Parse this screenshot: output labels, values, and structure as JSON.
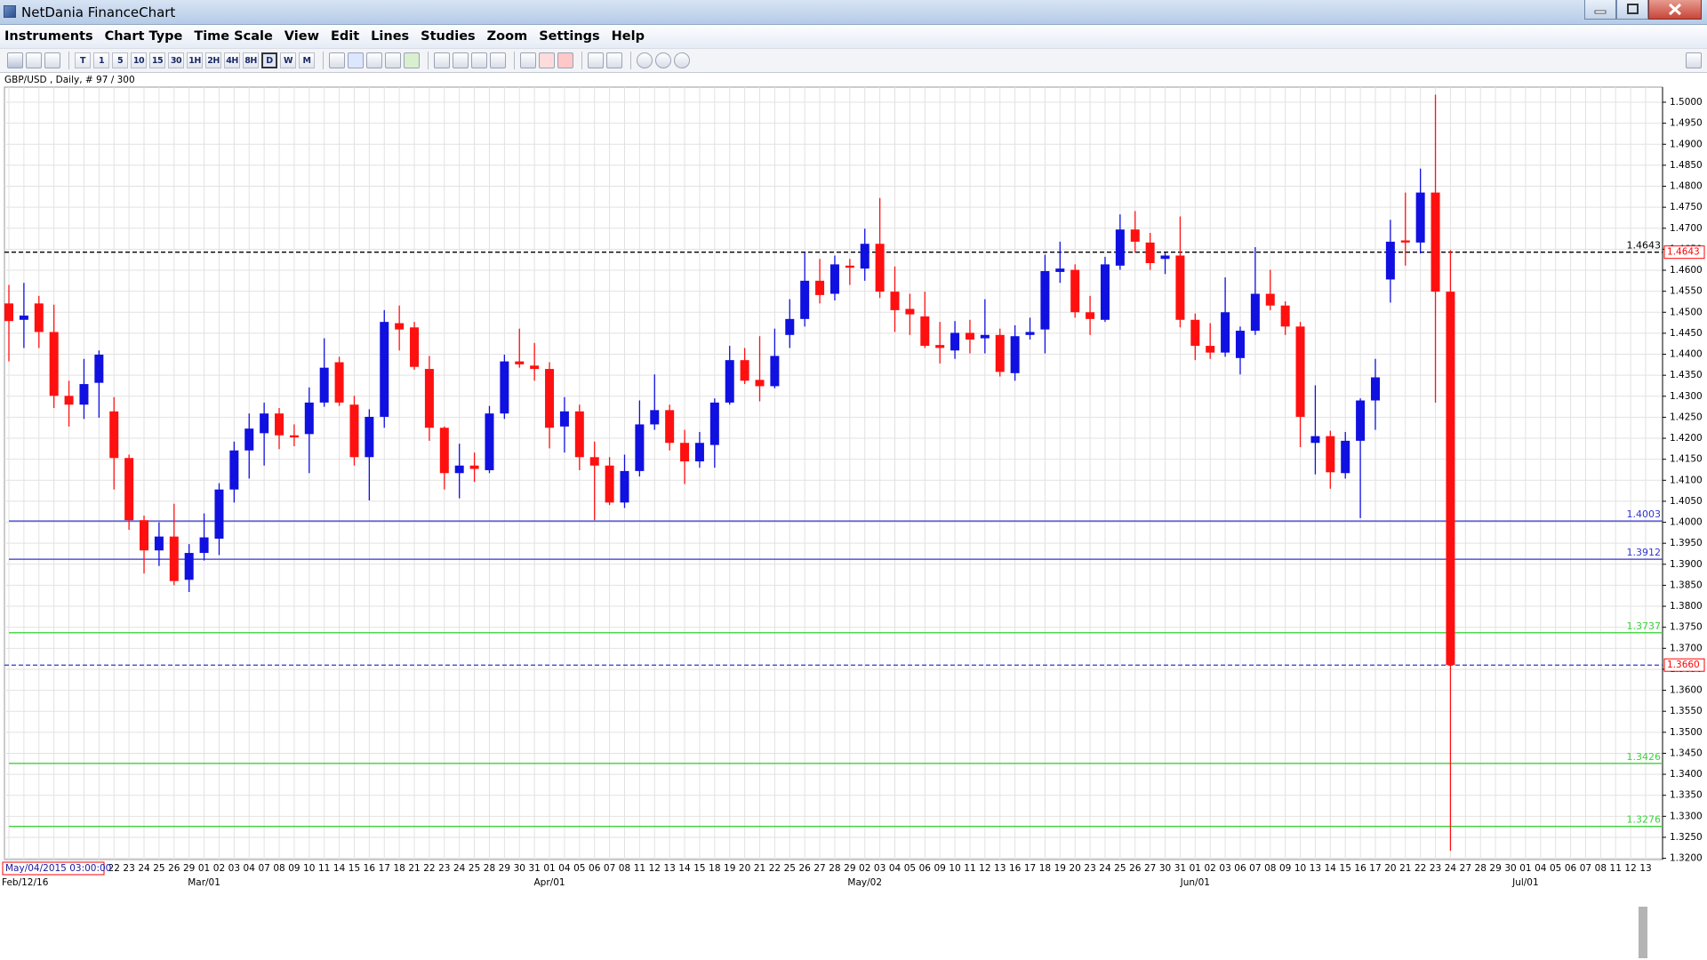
{
  "window": {
    "title": "NetDania FinanceChart",
    "menu": [
      "Instruments",
      "Chart Type",
      "Time Scale",
      "View",
      "Edit",
      "Lines",
      "Studies",
      "Zoom",
      "Settings",
      "Help"
    ]
  },
  "toolbar": {
    "timeframes": [
      "T",
      "1",
      "5",
      "10",
      "15",
      "30",
      "1H",
      "2H",
      "4H",
      "8H",
      "D",
      "W",
      "M"
    ],
    "selected": "D"
  },
  "chart_data": {
    "type": "candlestick",
    "title": "GBP/USD , Daily, # 97 / 300",
    "crosshair_time": "May/04/2015 03:00:00",
    "up_color": "#1010e0",
    "down_color": "#ff1010",
    "tag_color": "#ff0000",
    "grid": true,
    "categories": [
      null,
      null,
      null,
      null,
      null,
      null,
      null,
      "22",
      "23",
      "24",
      "25",
      "26",
      "29",
      "01",
      "02",
      "03",
      "04",
      "07",
      "08",
      "09",
      "10",
      "11",
      "14",
      "15",
      "16",
      "17",
      "18",
      "21",
      "22",
      "23",
      "24",
      "25",
      "28",
      "29",
      "30",
      "31",
      "01",
      "04",
      "05",
      "06",
      "07",
      "08",
      "11",
      "12",
      "13",
      "14",
      "15",
      "18",
      "19",
      "20",
      "21",
      "22",
      "25",
      "26",
      "27",
      "28",
      "29",
      "02",
      "03",
      "04",
      "05",
      "06",
      "09",
      "10",
      "11",
      "12",
      "13",
      "16",
      "17",
      "18",
      "19",
      "20",
      "23",
      "24",
      "25",
      "26",
      "27",
      "30",
      "31",
      "01",
      "02",
      "03",
      "06",
      "07",
      "08",
      "09",
      "10",
      "13",
      "14",
      "15",
      "16",
      "17",
      "20",
      "21",
      "22",
      "23",
      "24",
      "27",
      "28",
      "29",
      "30",
      "01",
      "04",
      "05",
      "06",
      "07",
      "08",
      "11",
      "12",
      "13"
    ],
    "periods": [
      "Feb/12/16",
      null,
      null,
      null,
      null,
      null,
      null,
      null,
      null,
      null,
      null,
      null,
      null,
      "Mar/01",
      null,
      null,
      null,
      null,
      null,
      null,
      null,
      null,
      null,
      null,
      null,
      null,
      null,
      null,
      null,
      null,
      null,
      null,
      null,
      null,
      null,
      null,
      "Apr/01",
      null,
      null,
      null,
      null,
      null,
      null,
      null,
      null,
      null,
      null,
      null,
      null,
      null,
      null,
      null,
      null,
      null,
      null,
      null,
      null,
      "May/02",
      null,
      null,
      null,
      null,
      null,
      null,
      null,
      null,
      null,
      null,
      null,
      null,
      null,
      null,
      null,
      null,
      null,
      null,
      null,
      null,
      null,
      "Jun/01",
      null,
      null,
      null,
      null,
      null,
      null,
      null,
      null,
      null,
      null,
      null,
      null,
      null,
      null,
      null,
      null,
      null,
      null,
      null,
      null,
      null,
      "Jul/01",
      null,
      null,
      null,
      null,
      null,
      null,
      null,
      null
    ],
    "open": [
      1.4521,
      1.4482,
      1.4521,
      1.4453,
      1.4301,
      1.428,
      1.4332,
      1.4264,
      1.4153,
      1.4005,
      1.3933,
      1.3966,
      1.3863,
      1.3927,
      1.3961,
      1.4078,
      1.4171,
      1.4212,
      1.4259,
      1.4207,
      1.421,
      1.4285,
      1.4381,
      1.428,
      1.4155,
      1.4251,
      1.4474,
      1.4464,
      1.4365,
      1.4225,
      1.4117,
      1.4135,
      1.4124,
      1.4259,
      1.4383,
      1.4373,
      1.4365,
      1.4228,
      1.4264,
      1.4155,
      1.4135,
      1.4047,
      1.4122,
      1.4233,
      1.4267,
      1.4189,
      1.4145,
      1.4184,
      1.4285,
      1.4386,
      1.4339,
      1.4324,
      1.4446,
      1.4484,
      1.4575,
      1.4544,
      1.4611,
      1.4604,
      1.4663,
      1.4549,
      1.4508,
      1.449,
      1.4422,
      1.4409,
      1.4451,
      1.4438,
      1.4446,
      1.4355,
      1.4446,
      1.4459,
      1.4596,
      1.4601,
      1.45,
      1.4482,
      1.4611,
      1.4697,
      1.4666,
      1.4627,
      1.4635,
      1.4482,
      1.442,
      1.4404,
      1.4391,
      1.4456,
      1.4544,
      1.4516,
      1.4466,
      1.4189,
      1.4205,
      1.4117,
      1.4194,
      1.429,
      1.4578,
      1.4671,
      1.4666,
      1.4785,
      1.4549,
      null,
      null,
      null,
      null,
      null,
      null,
      null,
      null,
      null,
      null,
      null,
      null,
      null
    ],
    "high": [
      1.4565,
      1.457,
      1.4539,
      1.4518,
      1.4337,
      1.4389,
      1.4409,
      1.4298,
      1.4161,
      1.4016,
      1.4,
      1.4044,
      1.3948,
      1.4021,
      1.4093,
      1.4192,
      1.4259,
      1.4285,
      1.4272,
      1.4233,
      1.4321,
      1.4438,
      1.4394,
      1.4301,
      1.4269,
      1.4505,
      1.4516,
      1.4477,
      1.4396,
      1.4228,
      1.4187,
      1.4166,
      1.4277,
      1.4399,
      1.4461,
      1.4427,
      1.4381,
      1.4298,
      1.428,
      1.4192,
      1.4155,
      1.4161,
      1.429,
      1.4352,
      1.428,
      1.422,
      1.4215,
      1.4295,
      1.442,
      1.4415,
      1.4443,
      1.4461,
      1.4531,
      1.4642,
      1.4627,
      1.4635,
      1.4627,
      1.4699,
      1.4772,
      1.4609,
      1.4544,
      1.4549,
      1.4477,
      1.4479,
      1.4482,
      1.4531,
      1.4461,
      1.4469,
      1.4487,
      1.4637,
      1.4668,
      1.4614,
      1.4539,
      1.4632,
      1.4733,
      1.4741,
      1.4689,
      1.4642,
      1.4728,
      1.4497,
      1.4474,
      1.4583,
      1.4466,
      1.4655,
      1.4601,
      1.4526,
      1.4477,
      1.4326,
      1.4218,
      1.4215,
      1.4295,
      1.4389,
      1.472,
      1.4785,
      1.4842,
      1.5018,
      1.4648,
      null,
      null,
      null,
      null,
      null,
      null,
      null,
      null,
      null,
      null,
      null,
      null,
      null
    ],
    "low": [
      1.4383,
      1.4415,
      1.4415,
      1.4272,
      1.4228,
      1.4246,
      1.4249,
      1.4078,
      1.3982,
      1.3878,
      1.3896,
      1.385,
      1.3834,
      1.3909,
      1.3922,
      1.4047,
      1.4104,
      1.4135,
      1.4174,
      1.4181,
      1.4117,
      1.4275,
      1.4277,
      1.4135,
      1.4052,
      1.4225,
      1.4409,
      1.4363,
      1.4194,
      1.4078,
      1.4057,
      1.4096,
      1.4117,
      1.4246,
      1.4368,
      1.4337,
      1.4176,
      1.4166,
      1.4124,
      1.4005,
      1.4041,
      1.4034,
      1.4109,
      1.422,
      1.4171,
      1.4091,
      1.413,
      1.413,
      1.428,
      1.4329,
      1.4288,
      1.4319,
      1.4415,
      1.4466,
      1.4521,
      1.4528,
      1.4565,
      1.4575,
      1.4534,
      1.4453,
      1.4446,
      1.4415,
      1.4378,
      1.4389,
      1.4402,
      1.4402,
      1.4347,
      1.4337,
      1.4435,
      1.4402,
      1.457,
      1.4487,
      1.4446,
      1.4477,
      1.4601,
      1.4642,
      1.4601,
      1.4591,
      1.4464,
      1.4386,
      1.4389,
      1.4394,
      1.4352,
      1.4446,
      1.4505,
      1.4446,
      1.4179,
      1.4114,
      1.408,
      1.4104,
      1.401,
      1.422,
      1.4523,
      1.4611,
      1.464,
      1.4285,
      1.3218,
      null,
      null,
      null,
      null,
      null,
      null,
      null,
      null,
      null,
      null,
      null,
      null,
      null
    ],
    "close": [
      1.4479,
      1.4492,
      1.4453,
      1.4301,
      1.428,
      1.4329,
      1.4399,
      1.4153,
      1.4005,
      1.3933,
      1.3966,
      1.386,
      1.3927,
      1.3964,
      1.4078,
      1.4171,
      1.4223,
      1.4259,
      1.4207,
      1.4202,
      1.4285,
      1.4368,
      1.4285,
      1.4155,
      1.4251,
      1.4477,
      1.4459,
      1.437,
      1.4225,
      1.4117,
      1.4135,
      1.4127,
      1.4259,
      1.4383,
      1.4376,
      1.4365,
      1.4225,
      1.4264,
      1.4155,
      1.4135,
      1.4047,
      1.4122,
      1.4233,
      1.4267,
      1.4189,
      1.4145,
      1.4189,
      1.4285,
      1.4386,
      1.4337,
      1.4324,
      1.4396,
      1.4484,
      1.4575,
      1.4541,
      1.4614,
      1.4606,
      1.4663,
      1.4549,
      1.4505,
      1.4495,
      1.442,
      1.4415,
      1.4451,
      1.4435,
      1.4446,
      1.4358,
      1.4443,
      1.4453,
      1.4598,
      1.4604,
      1.45,
      1.4484,
      1.4614,
      1.4697,
      1.4668,
      1.4617,
      1.4635,
      1.4482,
      1.442,
      1.4404,
      1.45,
      1.4456,
      1.4544,
      1.4516,
      1.4466,
      1.4251,
      1.4205,
      1.4119,
      1.4194,
      1.429,
      1.4345,
      1.4668,
      1.4666,
      1.4785,
      1.4549,
      1.366,
      null,
      null,
      null,
      null,
      null,
      null,
      null,
      null,
      null,
      null,
      null,
      null,
      null
    ],
    "ylim": [
      1.3197,
      1.5036
    ],
    "yticks": [
      {
        "value": 1.32,
        "label": "1.3200"
      },
      {
        "value": 1.325,
        "label": "1.3250"
      },
      {
        "value": 1.33,
        "label": "1.3300"
      },
      {
        "value": 1.335,
        "label": "1.3350"
      },
      {
        "value": 1.34,
        "label": "1.3400"
      },
      {
        "value": 1.345,
        "label": "1.3450"
      },
      {
        "value": 1.35,
        "label": "1.3500"
      },
      {
        "value": 1.355,
        "label": "1.3550"
      },
      {
        "value": 1.36,
        "label": "1.3600"
      },
      {
        "value": 1.365,
        "label": "1.3650"
      },
      {
        "value": 1.37,
        "label": "1.3700"
      },
      {
        "value": 1.375,
        "label": "1.3750"
      },
      {
        "value": 1.38,
        "label": "1.3800"
      },
      {
        "value": 1.385,
        "label": "1.3850"
      },
      {
        "value": 1.39,
        "label": "1.3900"
      },
      {
        "value": 1.395,
        "label": "1.3950"
      },
      {
        "value": 1.4,
        "label": "1.4000"
      },
      {
        "value": 1.405,
        "label": "1.4050"
      },
      {
        "value": 1.41,
        "label": "1.4100"
      },
      {
        "value": 1.415,
        "label": "1.4150"
      },
      {
        "value": 1.42,
        "label": "1.4200"
      },
      {
        "value": 1.425,
        "label": "1.4250"
      },
      {
        "value": 1.43,
        "label": "1.4300"
      },
      {
        "value": 1.435,
        "label": "1.4350"
      },
      {
        "value": 1.44,
        "label": "1.4400"
      },
      {
        "value": 1.445,
        "label": "1.4450"
      },
      {
        "value": 1.45,
        "label": "1.4500"
      },
      {
        "value": 1.455,
        "label": "1.4550"
      },
      {
        "value": 1.46,
        "label": "1.4600"
      },
      {
        "value": 1.465,
        "label": "1.4650"
      },
      {
        "value": 1.47,
        "label": "1.4700"
      },
      {
        "value": 1.475,
        "label": "1.4750"
      },
      {
        "value": 1.48,
        "label": "1.4800"
      },
      {
        "value": 1.485,
        "label": "1.4850"
      },
      {
        "value": 1.49,
        "label": "1.4900"
      },
      {
        "value": 1.495,
        "label": "1.4950"
      },
      {
        "value": 1.5,
        "label": "1.5000"
      }
    ],
    "levels": [
      {
        "value": 1.4643,
        "label": "1.4643",
        "color": "#000000",
        "dashed": true,
        "caption": true,
        "tag": true
      },
      {
        "value": 1.4003,
        "label": "1.4003",
        "color": "#3434d0",
        "dashed": false,
        "caption": true,
        "tag": false
      },
      {
        "value": 1.3912,
        "label": "1.3912",
        "color": "#3434d0",
        "dashed": false,
        "caption": true,
        "tag": false
      },
      {
        "value": 1.3737,
        "label": "1.3737",
        "color": "#3cd23c",
        "dashed": false,
        "caption": true,
        "tag": false
      },
      {
        "value": 1.366,
        "label": "1.3660",
        "color": "#3434d0",
        "dashed": true,
        "caption": false,
        "tag": true
      },
      {
        "value": 1.3426,
        "label": "1.3426",
        "color": "#3cd23c",
        "dashed": false,
        "caption": true,
        "tag": false
      },
      {
        "value": 1.3276,
        "label": "1.3276",
        "color": "#3cd23c",
        "dashed": false,
        "caption": true,
        "tag": false
      }
    ]
  }
}
